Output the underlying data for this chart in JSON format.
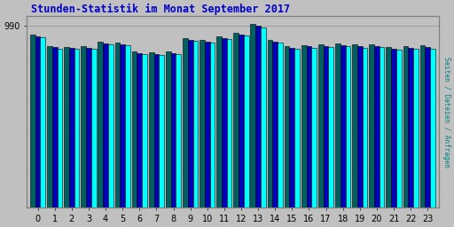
{
  "title": "Stunden-Statistik im Monat September 2017",
  "ylabel": "Seiten / Dateien / Anfragen",
  "xlabel_ticks": [
    0,
    1,
    2,
    3,
    4,
    5,
    6,
    7,
    8,
    9,
    10,
    11,
    12,
    13,
    14,
    15,
    16,
    17,
    18,
    19,
    20,
    21,
    22,
    23
  ],
  "ytick_label": "990",
  "ytick_value": 990,
  "background_color": "#c0c0c0",
  "plot_bg_color": "#c0c0c0",
  "title_color": "#0000cc",
  "ylabel_color": "#008080",
  "bar_colors": [
    "#006060",
    "#0000b8",
    "#00ffff"
  ],
  "bar_edgecolor": "#000000",
  "bar_linewidth": 0.4,
  "series": {
    "dark": [
      940,
      880,
      875,
      878,
      900,
      898,
      848,
      845,
      850,
      920,
      912,
      930,
      950,
      1000,
      912,
      878,
      885,
      888,
      892,
      888,
      890,
      872,
      878,
      882
    ],
    "blue": [
      930,
      872,
      868,
      870,
      892,
      890,
      840,
      835,
      842,
      912,
      902,
      922,
      942,
      990,
      902,
      868,
      876,
      878,
      882,
      878,
      880,
      863,
      868,
      872
    ],
    "cyan": [
      925,
      866,
      862,
      864,
      886,
      883,
      833,
      828,
      835,
      905,
      896,
      915,
      935,
      980,
      896,
      862,
      870,
      871,
      876,
      870,
      873,
      857,
      862,
      866
    ]
  },
  "ylim_min": 0,
  "ylim_max": 1040,
  "figsize": [
    5.12,
    2.56
  ],
  "dpi": 100
}
